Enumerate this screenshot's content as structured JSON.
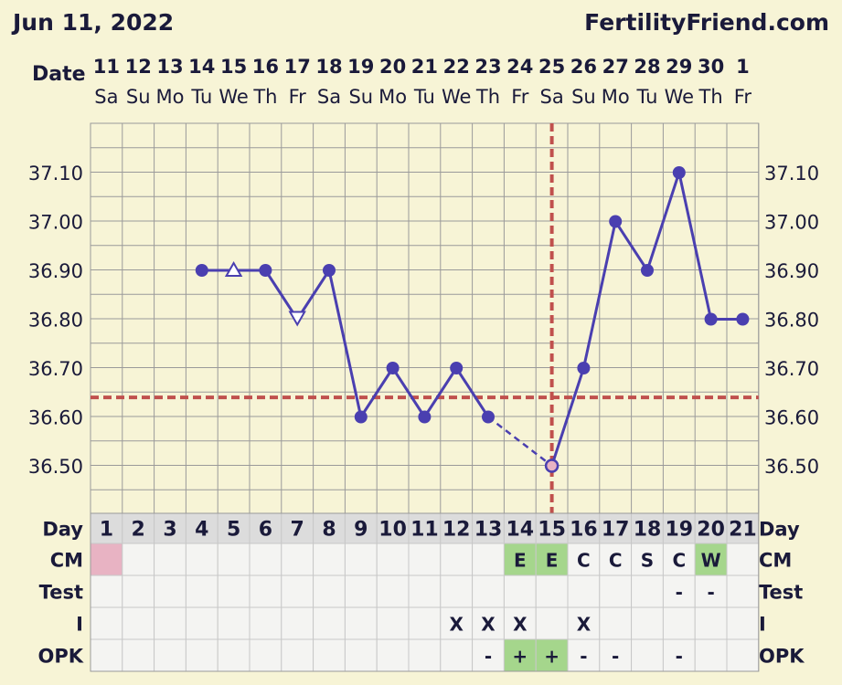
{
  "header": {
    "date": "Jun 11, 2022",
    "site": "FertilityFriend.com"
  },
  "chart_data": {
    "type": "line",
    "title": "",
    "row_labels": {
      "date": "Date",
      "day": "Day",
      "cm": "CM",
      "test": "Test",
      "i": "I",
      "opk": "OPK"
    },
    "dates": [
      "11",
      "12",
      "13",
      "14",
      "15",
      "16",
      "17",
      "18",
      "19",
      "20",
      "21",
      "22",
      "23",
      "24",
      "25",
      "26",
      "27",
      "28",
      "29",
      "30",
      "1"
    ],
    "weekdays": [
      "Sa",
      "Su",
      "Mo",
      "Tu",
      "We",
      "Th",
      "Fr",
      "Sa",
      "Su",
      "Mo",
      "Tu",
      "We",
      "Th",
      "Fr",
      "Sa",
      "Su",
      "Mo",
      "Tu",
      "We",
      "Th",
      "Fr"
    ],
    "days": [
      "1",
      "2",
      "3",
      "4",
      "5",
      "6",
      "7",
      "8",
      "9",
      "10",
      "11",
      "12",
      "13",
      "14",
      "15",
      "16",
      "17",
      "18",
      "19",
      "20",
      "21"
    ],
    "y_ticks": [
      "37.10",
      "37.00",
      "36.90",
      "36.80",
      "36.70",
      "36.60",
      "36.50"
    ],
    "ylim": [
      36.42,
      37.19
    ],
    "temps": [
      null,
      null,
      null,
      36.9,
      36.9,
      36.9,
      36.8,
      36.9,
      36.6,
      36.7,
      36.6,
      36.7,
      36.6,
      null,
      36.5,
      36.7,
      37.0,
      36.9,
      37.1,
      36.8,
      36.8
    ],
    "open_markers": [
      5,
      7
    ],
    "dashed_gap": [
      13,
      15
    ],
    "coverline": 36.64,
    "ovulation_day": 15,
    "cm": [
      "",
      "",
      "",
      "",
      "",
      "",
      "",
      "",
      "",
      "",
      "",
      "",
      "",
      "E",
      "E",
      "C",
      "C",
      "S",
      "C",
      "W",
      ""
    ],
    "cm_colored_days": [
      1,
      14,
      15,
      20
    ],
    "test": [
      "",
      "",
      "",
      "",
      "",
      "",
      "",
      "",
      "",
      "",
      "",
      "",
      "",
      "",
      "",
      "",
      "",
      "",
      "-",
      "-",
      ""
    ],
    "intercourse": [
      "",
      "",
      "",
      "",
      "",
      "",
      "",
      "",
      "",
      "",
      "",
      "X",
      "X",
      "X",
      "",
      "X",
      "",
      "",
      "",
      "",
      ""
    ],
    "opk": [
      "",
      "",
      "",
      "",
      "",
      "",
      "",
      "",
      "",
      "",
      "",
      "",
      "-",
      "+",
      "+",
      "-",
      "-",
      "",
      "-",
      "",
      ""
    ],
    "opk_colored_days": [
      14,
      15
    ],
    "colors": {
      "line": "#4a3fb0",
      "grid": "#9a9a9a",
      "cover": "#c0504d",
      "cell_pink": "#e8b3c3",
      "cell_green": "#a5d68c",
      "day_row": "#dcdcdc",
      "table_bg": "#f4f4f2"
    }
  }
}
